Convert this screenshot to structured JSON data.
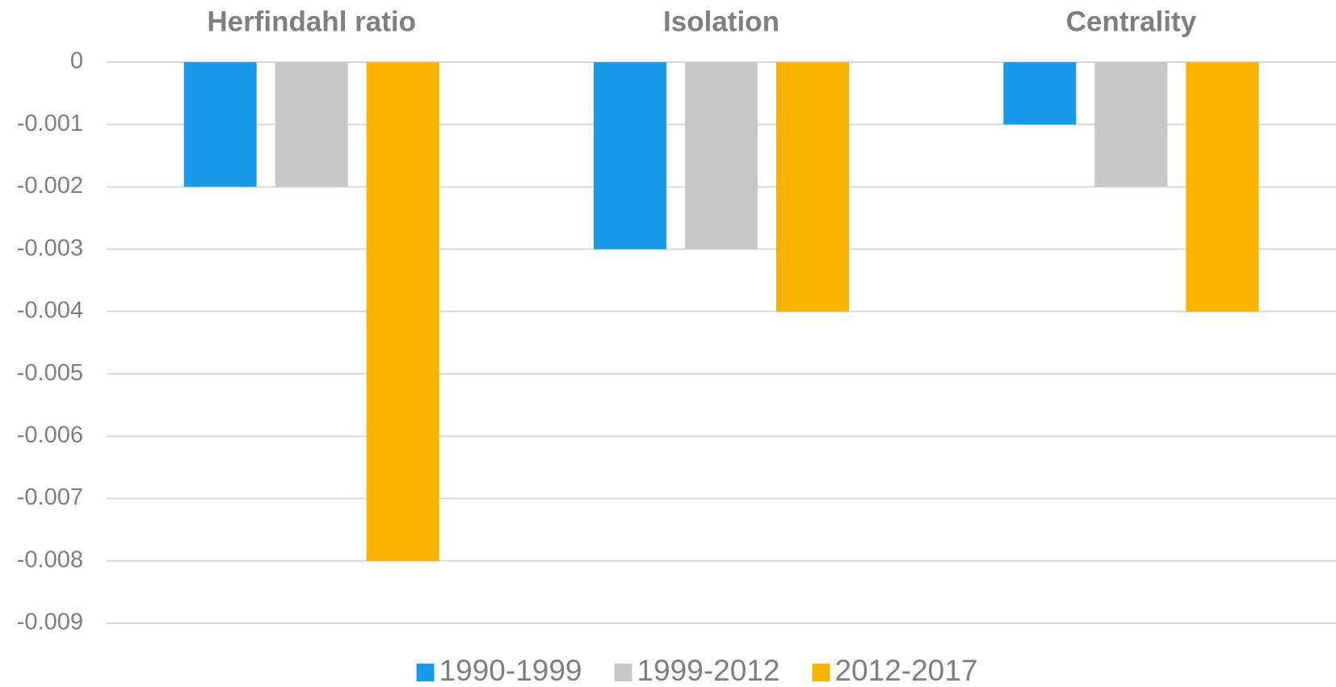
{
  "chart_data": {
    "type": "bar",
    "categories": [
      "Herfindahl ratio",
      "Isolation",
      "Centrality"
    ],
    "series": [
      {
        "name": "1990-1999",
        "color": "#179be9",
        "values": [
          -0.002,
          -0.003,
          -0.001
        ]
      },
      {
        "name": "1999-2012",
        "color": "#c8c8c8",
        "values": [
          -0.002,
          -0.003,
          -0.002
        ]
      },
      {
        "name": "2012-2017",
        "color": "#fbb300",
        "values": [
          -0.008,
          -0.004,
          -0.004
        ]
      }
    ],
    "ylim": [
      -0.009,
      0
    ],
    "yticks": [
      0,
      -0.001,
      -0.002,
      -0.003,
      -0.004,
      -0.005,
      -0.006,
      -0.007,
      -0.008,
      -0.009
    ],
    "grid": true,
    "legend": "bottom"
  }
}
